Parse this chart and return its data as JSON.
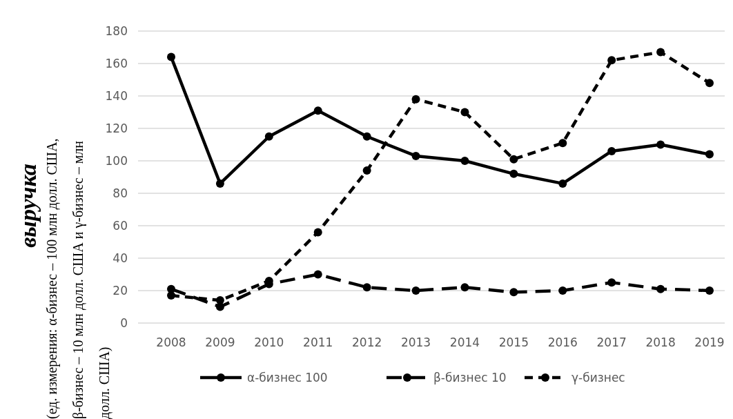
{
  "chart_data": {
    "type": "line",
    "ylabel": "выручка",
    "annotations": [
      "(ед. измерения: α-бизнес – 100 млн долл. США, β-бизнес – 10 млн долл. США и γ-бизнес – млн долл. США)"
    ],
    "categories": [
      "2008",
      "2009",
      "2010",
      "2011",
      "2012",
      "2013",
      "2014",
      "2015",
      "2016",
      "2017",
      "2018",
      "2019"
    ],
    "series": [
      {
        "name": "α-бизнес 100",
        "color": "#000000",
        "line_style": "solid",
        "values": [
          164,
          86,
          115,
          131,
          115,
          103,
          100,
          92,
          86,
          106,
          110,
          104
        ]
      },
      {
        "name": "β-бизнес 10",
        "color": "#000000",
        "line_style": "dashed",
        "values": [
          21,
          10,
          24,
          30,
          22,
          20,
          22,
          19,
          20,
          25,
          21,
          20
        ]
      },
      {
        "name": "γ-бизнес",
        "color": "#000000",
        "line_style": "dotted",
        "values": [
          17,
          14,
          26,
          56,
          94,
          138,
          130,
          101,
          111,
          162,
          167,
          148
        ]
      }
    ],
    "ylim": [
      0,
      180
    ],
    "yticks": [
      0,
      20,
      40,
      60,
      80,
      100,
      120,
      140,
      160,
      180
    ],
    "grid": "y",
    "legend": "bottom",
    "marker": "circle"
  }
}
